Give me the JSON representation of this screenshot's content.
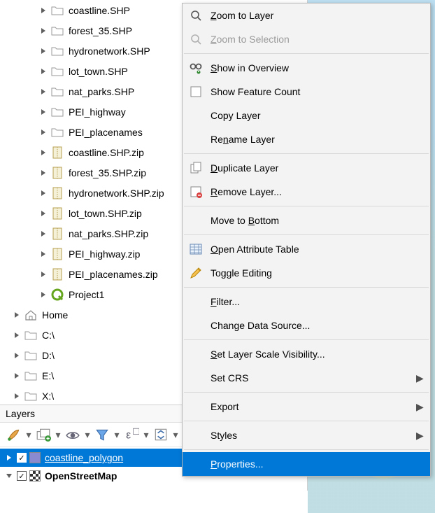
{
  "colors": {
    "selection": "#0078d7",
    "menu_bg": "#f3f3f3",
    "menu_border": "#b8b8b8",
    "water": "#bcdff1",
    "folder_fill": "#ffffff",
    "folder_stroke": "#9a9a9a",
    "zip_fill": "#f5f0d8",
    "zip_stroke": "#b8a050",
    "qgis_green": "#66a61e",
    "layer_swatch": "#8a8ad0"
  },
  "browser": {
    "items": [
      {
        "label": "coastline.SHP",
        "icon": "folder",
        "indent": 1,
        "expandable": true
      },
      {
        "label": "forest_35.SHP",
        "icon": "folder",
        "indent": 1,
        "expandable": true
      },
      {
        "label": "hydronetwork.SHP",
        "icon": "folder",
        "indent": 1,
        "expandable": true
      },
      {
        "label": "lot_town.SHP",
        "icon": "folder",
        "indent": 1,
        "expandable": true
      },
      {
        "label": "nat_parks.SHP",
        "icon": "folder",
        "indent": 1,
        "expandable": true
      },
      {
        "label": "PEI_highway",
        "icon": "folder",
        "indent": 1,
        "expandable": true
      },
      {
        "label": "PEI_placenames",
        "icon": "folder",
        "indent": 1,
        "expandable": true
      },
      {
        "label": "coastline.SHP.zip",
        "icon": "zip",
        "indent": 1,
        "expandable": true
      },
      {
        "label": "forest_35.SHP.zip",
        "icon": "zip",
        "indent": 1,
        "expandable": true
      },
      {
        "label": "hydronetwork.SHP.zip",
        "icon": "zip",
        "indent": 1,
        "expandable": true
      },
      {
        "label": "lot_town.SHP.zip",
        "icon": "zip",
        "indent": 1,
        "expandable": true
      },
      {
        "label": "nat_parks.SHP.zip",
        "icon": "zip",
        "indent": 1,
        "expandable": true
      },
      {
        "label": "PEI_highway.zip",
        "icon": "zip",
        "indent": 1,
        "expandable": true
      },
      {
        "label": "PEI_placenames.zip",
        "icon": "zip",
        "indent": 1,
        "expandable": true
      },
      {
        "label": "Project1",
        "icon": "qgis",
        "indent": 1,
        "expandable": true
      },
      {
        "label": "Home",
        "icon": "home",
        "indent": 0,
        "expandable": true
      },
      {
        "label": "C:\\",
        "icon": "folder",
        "indent": 0,
        "expandable": true
      },
      {
        "label": "D:\\",
        "icon": "folder",
        "indent": 0,
        "expandable": true
      },
      {
        "label": "E:\\",
        "icon": "folder",
        "indent": 0,
        "expandable": true
      },
      {
        "label": "X:\\",
        "icon": "folder",
        "indent": 0,
        "expandable": true
      }
    ]
  },
  "layers_panel": {
    "title": "Layers",
    "toolbar_icons": [
      "style-brush",
      "add-group",
      "visibility",
      "filter",
      "expression",
      "collapse-expand"
    ],
    "layers": [
      {
        "name": "coastline_polygon",
        "checked": true,
        "selected": true,
        "swatch": "#8a8ad0",
        "expandable": true
      },
      {
        "name": "OpenStreetMap",
        "checked": true,
        "selected": false,
        "swatch": "osm",
        "bold": true,
        "expandable": true,
        "expanded": true
      }
    ]
  },
  "context_menu": {
    "items": [
      {
        "kind": "item",
        "icon": "zoom",
        "label_pre": "",
        "mnemonic": "Z",
        "label_post": "oom to Layer",
        "interact": true
      },
      {
        "kind": "item",
        "icon": "zoom",
        "label_pre": "",
        "mnemonic": "Z",
        "label_post": "oom to Selection",
        "disabled": true,
        "interact": true
      },
      {
        "kind": "sep"
      },
      {
        "kind": "item",
        "icon": "overview",
        "label_pre": "",
        "mnemonic": "S",
        "label_post": "how in Overview",
        "interact": true
      },
      {
        "kind": "item",
        "icon": "checkbox",
        "label_pre": "Show Feature ",
        "mnemonic": "C",
        "label_post": "ount",
        "no_underline": true,
        "plain": "Show Feature Count",
        "interact": true
      },
      {
        "kind": "item",
        "icon": "",
        "plain": "Copy Layer",
        "interact": true
      },
      {
        "kind": "item",
        "icon": "",
        "label_pre": "Re",
        "mnemonic": "n",
        "label_post": "ame Layer",
        "interact": true
      },
      {
        "kind": "sep"
      },
      {
        "kind": "item",
        "icon": "duplicate",
        "label_pre": "",
        "mnemonic": "D",
        "label_post": "uplicate Layer",
        "interact": true
      },
      {
        "kind": "item",
        "icon": "remove",
        "label_pre": "",
        "mnemonic": "R",
        "label_post": "emove Layer...",
        "interact": true
      },
      {
        "kind": "sep"
      },
      {
        "kind": "item",
        "icon": "",
        "label_pre": "Move to ",
        "mnemonic": "B",
        "label_post": "ottom",
        "interact": true
      },
      {
        "kind": "sep"
      },
      {
        "kind": "item",
        "icon": "table",
        "label_pre": "",
        "mnemonic": "O",
        "label_post": "pen Attribute Table",
        "interact": true
      },
      {
        "kind": "item",
        "icon": "pencil",
        "plain": "Toggle Editing",
        "interact": true
      },
      {
        "kind": "sep"
      },
      {
        "kind": "item",
        "icon": "",
        "label_pre": "",
        "mnemonic": "F",
        "label_post": "ilter...",
        "interact": true
      },
      {
        "kind": "item",
        "icon": "",
        "plain": "Change Data Source...",
        "interact": true
      },
      {
        "kind": "sep"
      },
      {
        "kind": "item",
        "icon": "",
        "label_pre": "",
        "mnemonic": "S",
        "label_post": "et Layer Scale Visibility...",
        "interact": true
      },
      {
        "kind": "item",
        "icon": "",
        "plain": "Set CRS",
        "submenu": true,
        "interact": true
      },
      {
        "kind": "sep"
      },
      {
        "kind": "item",
        "icon": "",
        "plain": "Export",
        "submenu": true,
        "interact": true
      },
      {
        "kind": "sep"
      },
      {
        "kind": "item",
        "icon": "",
        "plain": "Styles",
        "submenu": true,
        "interact": true
      },
      {
        "kind": "sep"
      },
      {
        "kind": "item",
        "icon": "",
        "label_pre": "",
        "mnemonic": "P",
        "label_post": "roperties...",
        "highlight": true,
        "interact": true
      }
    ]
  }
}
